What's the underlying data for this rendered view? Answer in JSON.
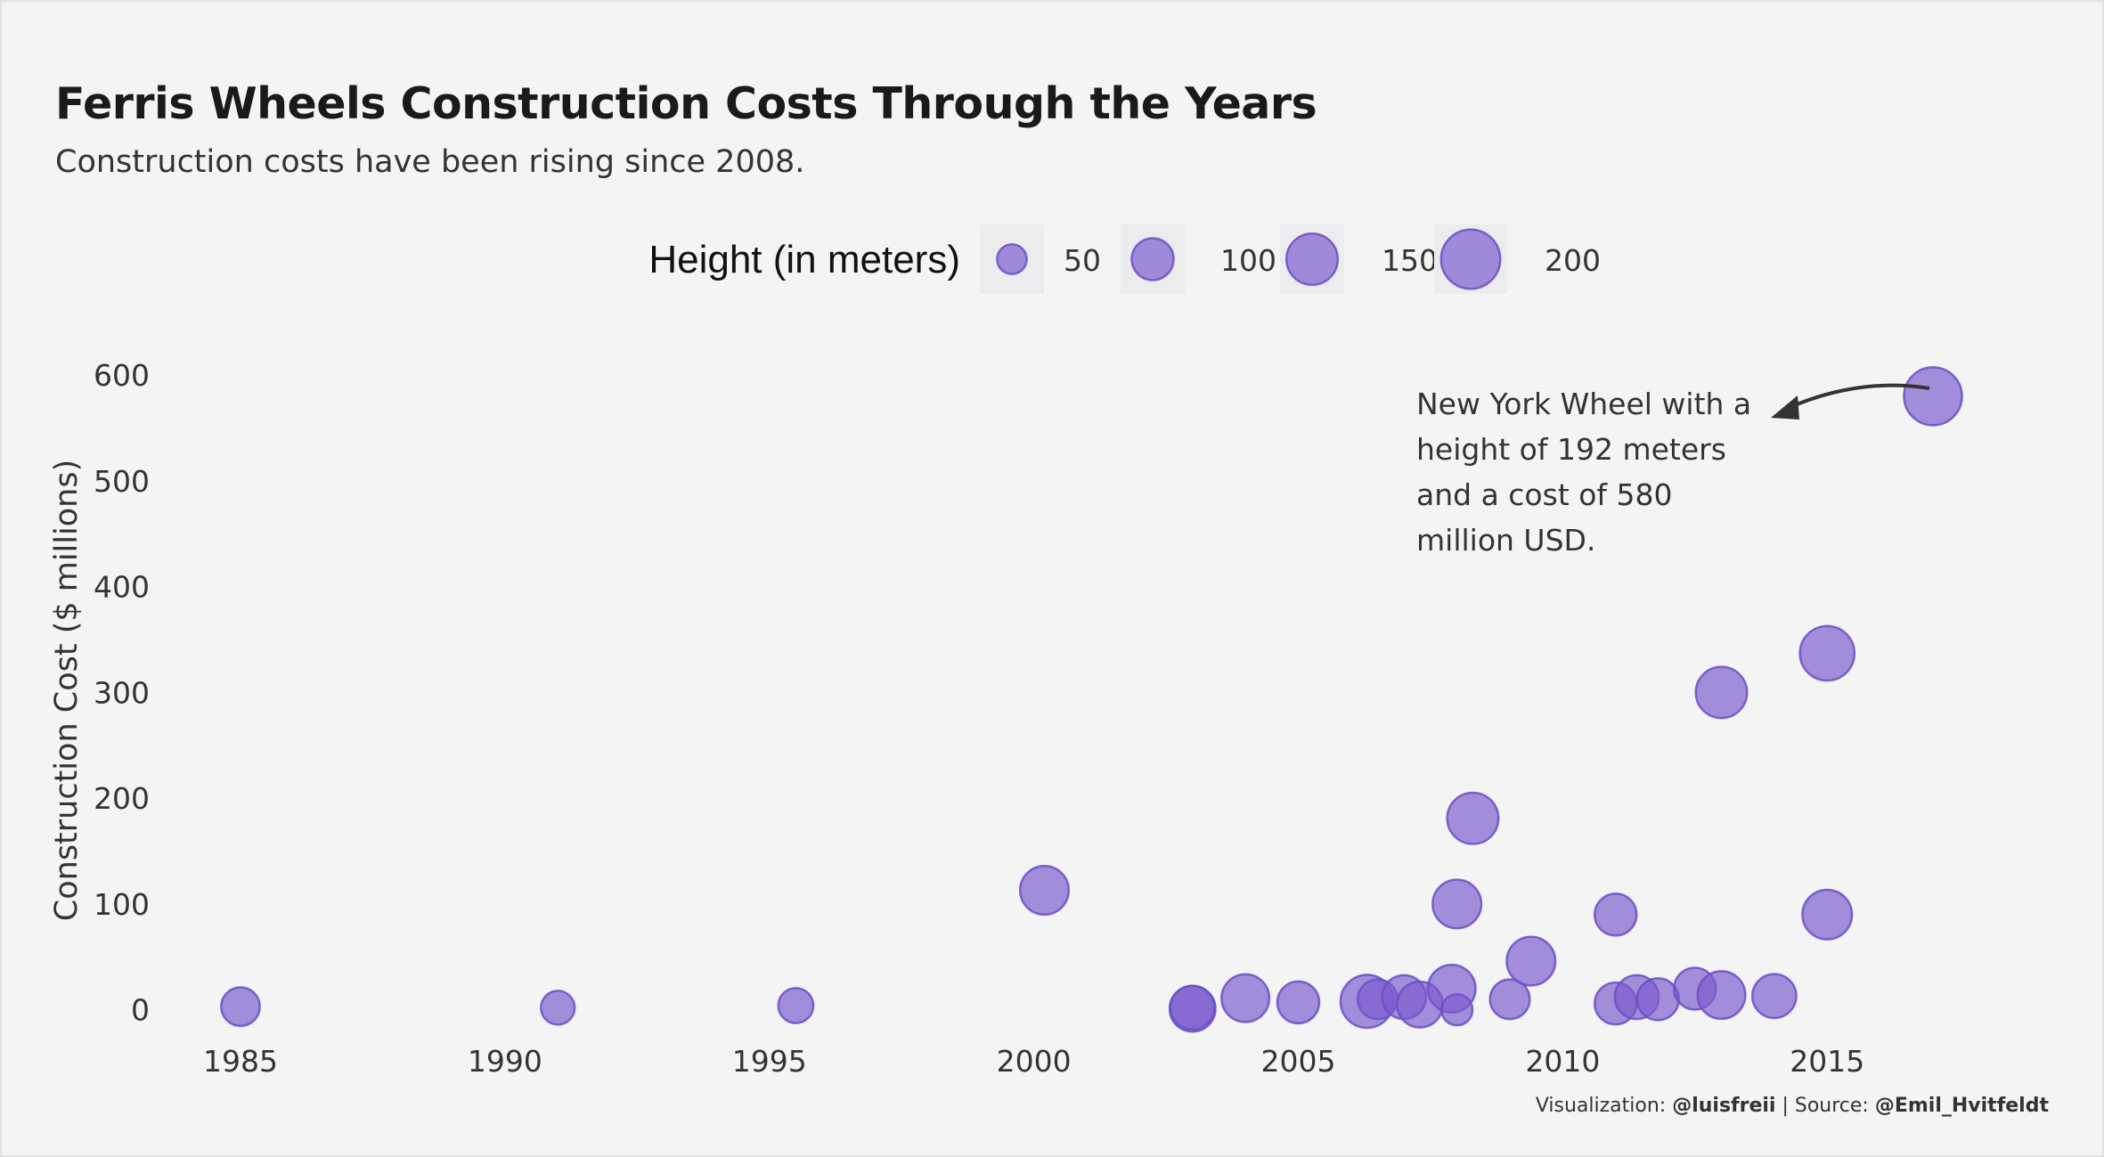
{
  "title": "Ferris Wheels Construction Costs Through the Years",
  "subtitle": "Construction costs have been rising since 2008.",
  "caption": {
    "prefix": "Visualization: ",
    "author": "@luisfreii",
    "separator": " | Source: ",
    "source": "@Emil_Hvitfeldt"
  },
  "annotation": {
    "lines": [
      "New York Wheel with a",
      "height of 192 meters",
      "and a cost of 580",
      "million USD."
    ]
  },
  "colors": {
    "bubble_fill": "#7b5ccf",
    "bubble_stroke": "#6a4fc4",
    "background": "#f4f4f5",
    "legend_key_bg": "#ececee",
    "arrow": "#333333"
  },
  "chart_data": {
    "type": "scatter",
    "title": "Ferris Wheels Construction Costs Through the Years",
    "subtitle": "Construction costs have been rising since 2008.",
    "xlabel": "",
    "ylabel": "Construction Cost ($ millions)",
    "xlim": [
      1983.4,
      2018.6
    ],
    "ylim": [
      -28,
      622
    ],
    "x_ticks": [
      1985,
      1990,
      1995,
      2000,
      2005,
      2010,
      2015
    ],
    "y_ticks": [
      0,
      100,
      200,
      300,
      400,
      500,
      600
    ],
    "grid": false,
    "size_legend": {
      "title": "Height (in meters)",
      "values": [
        50,
        100,
        150,
        200
      ],
      "labels": [
        "50",
        "100",
        "150",
        "200"
      ],
      "placement": "top"
    },
    "points": [
      {
        "x": 1985.0,
        "y": 3,
        "size": 85
      },
      {
        "x": 1991.0,
        "y": 2,
        "size": 65
      },
      {
        "x": 1995.5,
        "y": 4,
        "size": 70
      },
      {
        "x": 2000.2,
        "y": 113,
        "size": 135
      },
      {
        "x": 2003.0,
        "y": 1,
        "size": 120
      },
      {
        "x": 2003.0,
        "y": 2,
        "size": 110
      },
      {
        "x": 2004.0,
        "y": 11,
        "size": 130
      },
      {
        "x": 2005.0,
        "y": 7,
        "size": 100
      },
      {
        "x": 2006.3,
        "y": 8,
        "size": 160
      },
      {
        "x": 2006.5,
        "y": 10,
        "size": 90
      },
      {
        "x": 2007.0,
        "y": 12,
        "size": 110
      },
      {
        "x": 2007.3,
        "y": 5,
        "size": 120
      },
      {
        "x": 2007.9,
        "y": 20,
        "size": 130
      },
      {
        "x": 2008.0,
        "y": 0,
        "size": 55
      },
      {
        "x": 2008.0,
        "y": 100,
        "size": 135
      },
      {
        "x": 2008.3,
        "y": 181,
        "size": 150
      },
      {
        "x": 2009.0,
        "y": 10,
        "size": 90
      },
      {
        "x": 2009.4,
        "y": 46,
        "size": 135
      },
      {
        "x": 2011.0,
        "y": 90,
        "size": 100
      },
      {
        "x": 2011.0,
        "y": 6,
        "size": 100
      },
      {
        "x": 2011.4,
        "y": 12,
        "size": 110
      },
      {
        "x": 2011.8,
        "y": 10,
        "size": 100
      },
      {
        "x": 2012.5,
        "y": 20,
        "size": 100
      },
      {
        "x": 2013.0,
        "y": 300,
        "size": 150
      },
      {
        "x": 2013.0,
        "y": 14,
        "size": 130
      },
      {
        "x": 2014.0,
        "y": 13,
        "size": 110
      },
      {
        "x": 2015.0,
        "y": 90,
        "size": 140
      },
      {
        "x": 2015.0,
        "y": 337,
        "size": 170
      },
      {
        "x": 2017.0,
        "y": 580,
        "size": 192
      }
    ]
  }
}
